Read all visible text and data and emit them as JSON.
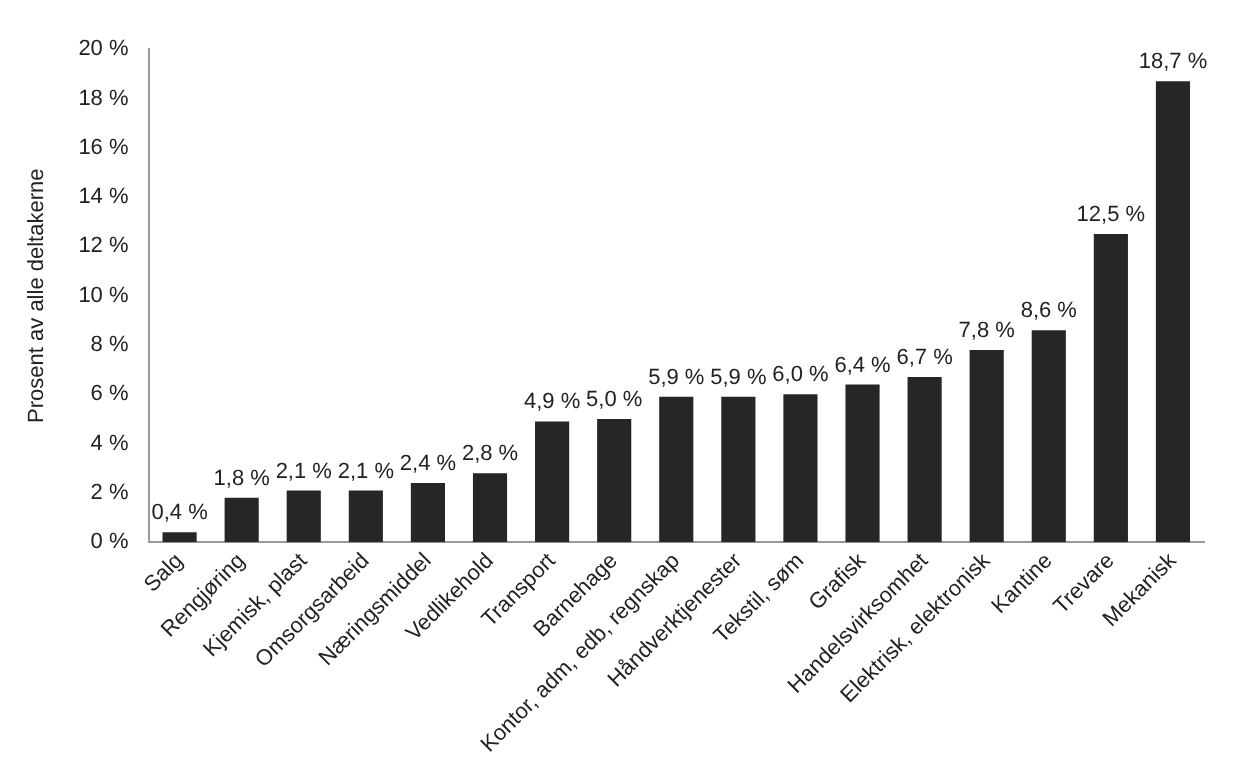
{
  "chart_data": {
    "type": "bar",
    "ylabel": "Prosent av alle deltakerne",
    "categories": [
      "Salg",
      "Rengjøring",
      "Kjemisk, plast",
      "Omsorgsarbeid",
      "Næringsmiddel",
      "Vedlikehold",
      "Transport",
      "Barnehage",
      "Kontor, adm, edb, regnskap",
      "Håndverktjenester",
      "Tekstil, søm",
      "Grafisk",
      "Handelsvirksomhet",
      "Elektrisk, elektronisk",
      "Kantine",
      "Trevare",
      "Mekanisk"
    ],
    "values": [
      0.4,
      1.8,
      2.1,
      2.1,
      2.4,
      2.8,
      4.9,
      5.0,
      5.9,
      5.9,
      6.0,
      6.4,
      6.7,
      7.8,
      8.6,
      12.5,
      18.7
    ],
    "value_labels": [
      "0,4 %",
      "1,8 %",
      "2,1 %",
      "2,1 %",
      "2,4 %",
      "2,8 %",
      "4,9 %",
      "5,0 %",
      "5,9 %",
      "5,9 %",
      "6,0 %",
      "6,4 %",
      "6,7 %",
      "7,8 %",
      "8,6 %",
      "12,5 %",
      "18,7 %"
    ],
    "color": "#262626",
    "ylim": [
      0,
      20
    ],
    "yticks": [
      {
        "value": 0,
        "label": "0 %"
      },
      {
        "value": 2,
        "label": "2 %"
      },
      {
        "value": 4,
        "label": "4 %"
      },
      {
        "value": 6,
        "label": "6 %"
      },
      {
        "value": 8,
        "label": "8 %"
      },
      {
        "value": 10,
        "label": "10 %"
      },
      {
        "value": 12,
        "label": "12 %"
      },
      {
        "value": 14,
        "label": "14 %"
      },
      {
        "value": 16,
        "label": "16 %"
      },
      {
        "value": 18,
        "label": "18 %"
      },
      {
        "value": 20,
        "label": "20 %"
      }
    ],
    "grid": false,
    "legend": false
  }
}
